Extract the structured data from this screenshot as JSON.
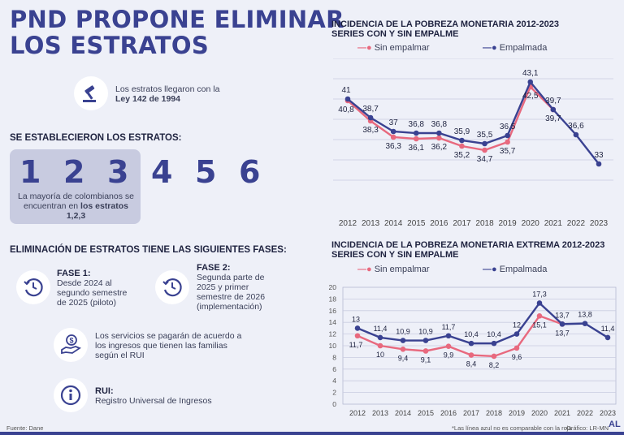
{
  "header": {
    "title_line1": "PND PROPONE ELIMINAR",
    "title_line2": "LOS ESTRATOS"
  },
  "intro": {
    "text": "Los estratos llegaron con la",
    "law": "Ley 142 de 1994"
  },
  "strata": {
    "heading": "SE ESTABLECIERON LOS ESTRATOS:",
    "numbers": [
      "1",
      "2",
      "3",
      "4",
      "5",
      "6"
    ],
    "note_prefix": "La mayoría de colombianos se encuentran en",
    "note_bold": "los estratos 1,2,3"
  },
  "phases": {
    "heading": "ELIMINACIÓN DE ESTRATOS TIENE LAS SIGUIENTES FASES:",
    "phase1_title": "FASE 1:",
    "phase1_text": "Desde 2024 al segundo semestre de 2025 (piloto)",
    "phase2_title": "FASE 2:",
    "phase2_text": "Segunda parte de 2025 y primer semestre de 2026 (implementación)",
    "services_text": "Los servicios se pagarán de acuerdo a los ingresos que tienen las familias según el RUI",
    "rui_title": "RUI:",
    "rui_text": "Registro Universal de Ingresos"
  },
  "footer": {
    "source": "Fuente: Dane",
    "note": "*Las línea azul no es comparable con la roja",
    "credit": "Gráfico: LR-MN",
    "logo": "AL"
  },
  "colors": {
    "blue": "#3a4291",
    "pink": "#e8697e",
    "bg": "#eef0f8"
  },
  "chart_data": [
    {
      "type": "line",
      "title": "INCIDENCIA DE LA POBREZA MONETARIA 2012-2023",
      "subtitle": "SERIES CON Y SIN EMPALME",
      "x": [
        "2012",
        "2013",
        "2014",
        "2015",
        "2016",
        "2017",
        "2018",
        "2019",
        "2020",
        "2021",
        "2022",
        "2023"
      ],
      "series": [
        {
          "name": "Sin empalmar",
          "values": [
            40.8,
            38.3,
            36.3,
            36.1,
            36.2,
            35.2,
            34.7,
            35.7,
            42.5,
            39.7,
            null,
            null
          ],
          "labels": [
            "40,8",
            "38,3",
            "36,3",
            "36,1",
            "36,2",
            "35,2",
            "34,7",
            "35,7",
            "42,5",
            "39,7",
            "",
            ""
          ]
        },
        {
          "name": "Empalmada",
          "values": [
            41,
            38.7,
            37,
            36.8,
            36.8,
            35.9,
            35.5,
            36.5,
            43.1,
            39.7,
            36.6,
            33
          ],
          "labels": [
            "41",
            "38,7",
            "37",
            "36,8",
            "36,8",
            "35,9",
            "35,5",
            "36,5",
            "43,1",
            "39,7",
            "36,6",
            "33"
          ]
        }
      ],
      "ylim": [
        30,
        46
      ]
    },
    {
      "type": "line",
      "title": "INCIDENCIA DE LA POBREZA MONETARIA EXTREMA 2012-2023",
      "subtitle": "SERIES CON Y SIN EMPALME",
      "x": [
        "2012",
        "2013",
        "2014",
        "2015",
        "2016",
        "2017",
        "2018",
        "2019",
        "2020",
        "2021",
        "2022",
        "2023"
      ],
      "series": [
        {
          "name": "Sin empalmar",
          "values": [
            11.7,
            10,
            9.4,
            9.1,
            9.9,
            8.4,
            8.2,
            9.6,
            15.1,
            13.7,
            null,
            null
          ],
          "labels": [
            "11,7",
            "10",
            "9,4",
            "9,1",
            "9,9",
            "8,4",
            "8,2",
            "9,6",
            "15,1",
            "13,7",
            "",
            ""
          ]
        },
        {
          "name": "Empalmada",
          "values": [
            13,
            11.4,
            10.9,
            10.9,
            11.7,
            10.4,
            10.4,
            12,
            17.3,
            13.7,
            13.8,
            11.4
          ],
          "labels": [
            "13",
            "11,4",
            "10,9",
            "10,9",
            "11,7",
            "10,4",
            "10,4",
            "12",
            "17,3",
            "13,7",
            "13,8",
            "11,4"
          ]
        }
      ],
      "yticks": [
        "0",
        "2",
        "4",
        "6",
        "8",
        "10",
        "12",
        "14",
        "16",
        "18",
        "20"
      ],
      "ylim": [
        0,
        20
      ]
    }
  ]
}
